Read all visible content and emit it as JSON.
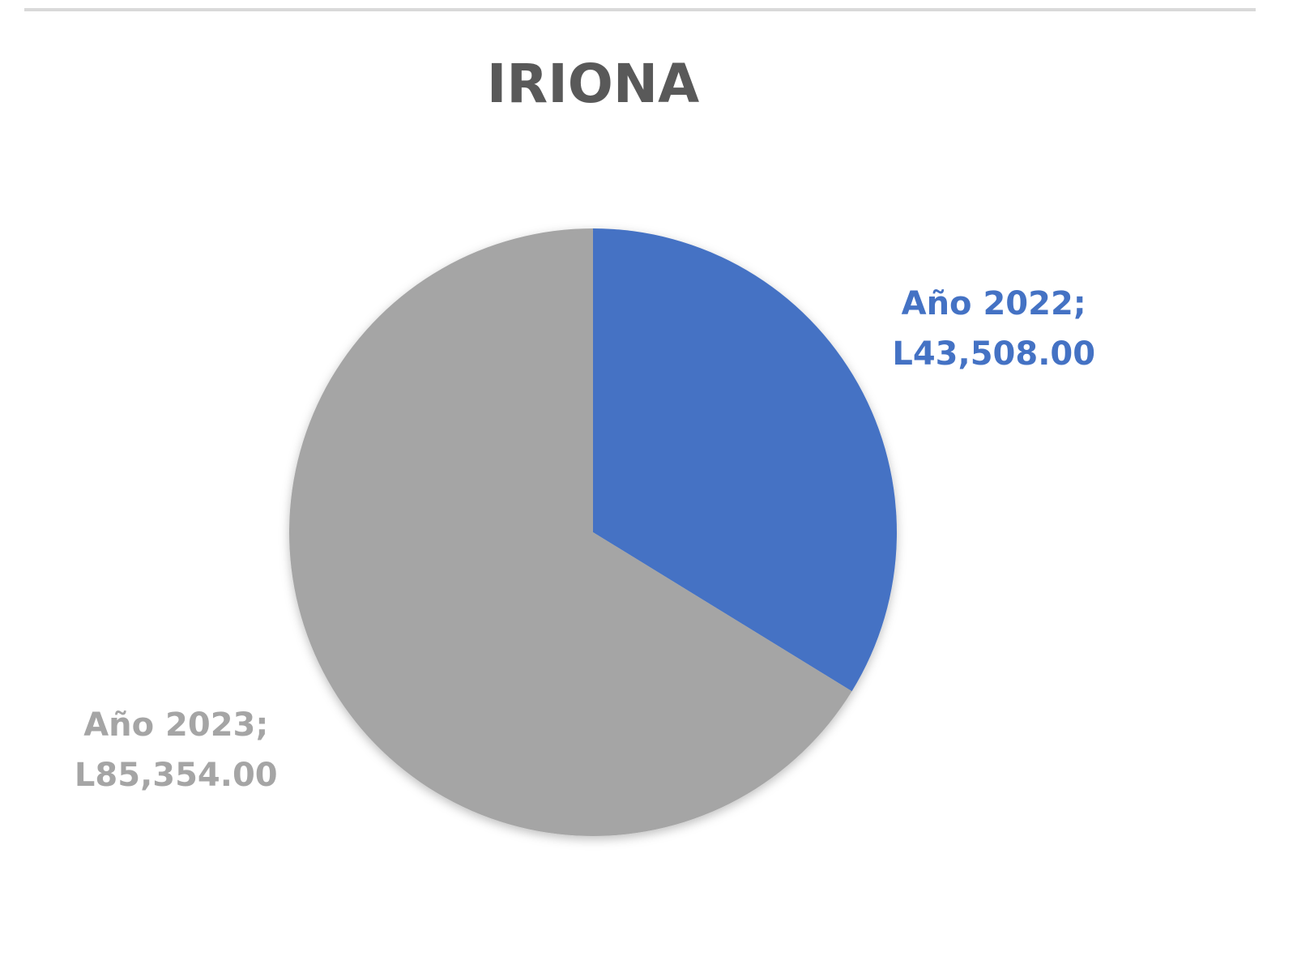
{
  "chart_data": {
    "type": "pie",
    "title": "IRIONA",
    "categories": [
      "Año 2022",
      "Año 2023"
    ],
    "values": [
      43508,
      85354
    ],
    "value_labels": [
      "L43,508.00",
      "L85,354.00"
    ],
    "label_separator": ";",
    "colors": [
      "#4472c4",
      "#a5a5a5"
    ]
  }
}
